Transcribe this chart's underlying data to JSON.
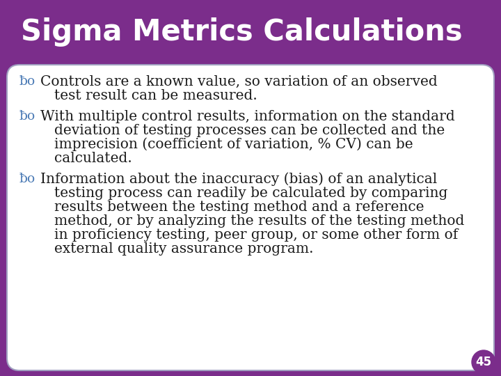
{
  "title": "Sigma Metrics Calculations",
  "title_color": "#ffffff",
  "slide_bg_color": "#7b2d8b",
  "title_bg_color": "#7b2d8b",
  "content_bg_color": "#ffffff",
  "content_border_color": "#a0a0c0",
  "bullet_color": "#4a7ab5",
  "text_color": "#1a1a1a",
  "page_number": "45",
  "page_num_bg": "#7b2d8b",
  "bullet_lines": [
    [
      "Controls are a known value, so variation of an observed",
      "test result can be measured."
    ],
    [
      "With multiple control results, information on the standard",
      "deviation of testing processes can be collected and the",
      "imprecision (coefficient of variation, % CV) can be",
      "calculated."
    ],
    [
      "Information about the inaccuracy (bias) of an analytical",
      "testing process can readily be calculated by comparing",
      "results between the testing method and a reference",
      "method, or by analyzing the results of the testing method",
      "in proficiency testing, peer group, or some other form of",
      "external quality assurance program."
    ]
  ],
  "font_size": 14.5,
  "title_font_size": 30
}
